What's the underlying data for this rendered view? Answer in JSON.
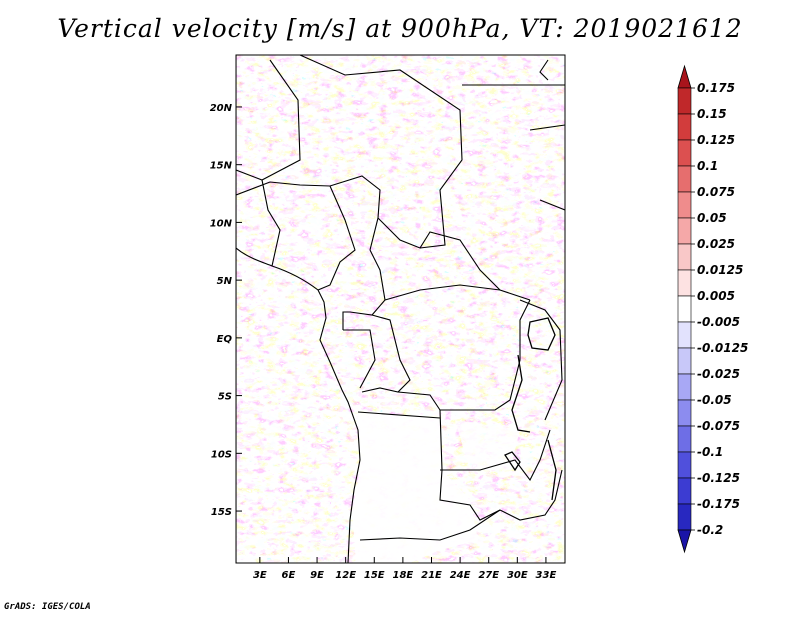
{
  "title": "Vertical velocity [m/s] at 900hPa, VT: 2019021612",
  "credit": "GrADS: IGES/COLA",
  "map": {
    "lat_labels": [
      "20N",
      "15N",
      "10N",
      "5N",
      "EQ",
      "5S",
      "10S",
      "15S"
    ],
    "lat_values": [
      20,
      15,
      10,
      5,
      0,
      -5,
      -10,
      -15
    ],
    "lon_labels": [
      "3E",
      "6E",
      "9E",
      "12E",
      "15E",
      "18E",
      "21E",
      "24E",
      "27E",
      "30E",
      "33E"
    ],
    "lon_values": [
      3,
      6,
      9,
      12,
      15,
      18,
      21,
      24,
      27,
      30,
      33
    ],
    "lon_range": [
      0.5,
      35
    ],
    "lat_range": [
      -19.5,
      24.5
    ]
  },
  "colorbar": {
    "labels": [
      "0.175",
      "0.15",
      "0.125",
      "0.1",
      "0.075",
      "0.05",
      "0.025",
      "0.0125",
      "0.005",
      "-0.005",
      "-0.0125",
      "-0.025",
      "-0.05",
      "-0.075",
      "-0.1",
      "-0.125",
      "-0.175",
      "-0.2"
    ],
    "colors": [
      "#a8141c",
      "#c0282a",
      "#d23c3c",
      "#dc5050",
      "#e66e6e",
      "#ef8c8c",
      "#f5a8a8",
      "#f9c8c8",
      "#fde2e2",
      "#ffffff",
      "#e2e2fd",
      "#c8c8f9",
      "#a8a8f5",
      "#8c8cef",
      "#6e6ee6",
      "#5050dc",
      "#3c3cd2",
      "#2828c0",
      "#1a14a8"
    ]
  }
}
